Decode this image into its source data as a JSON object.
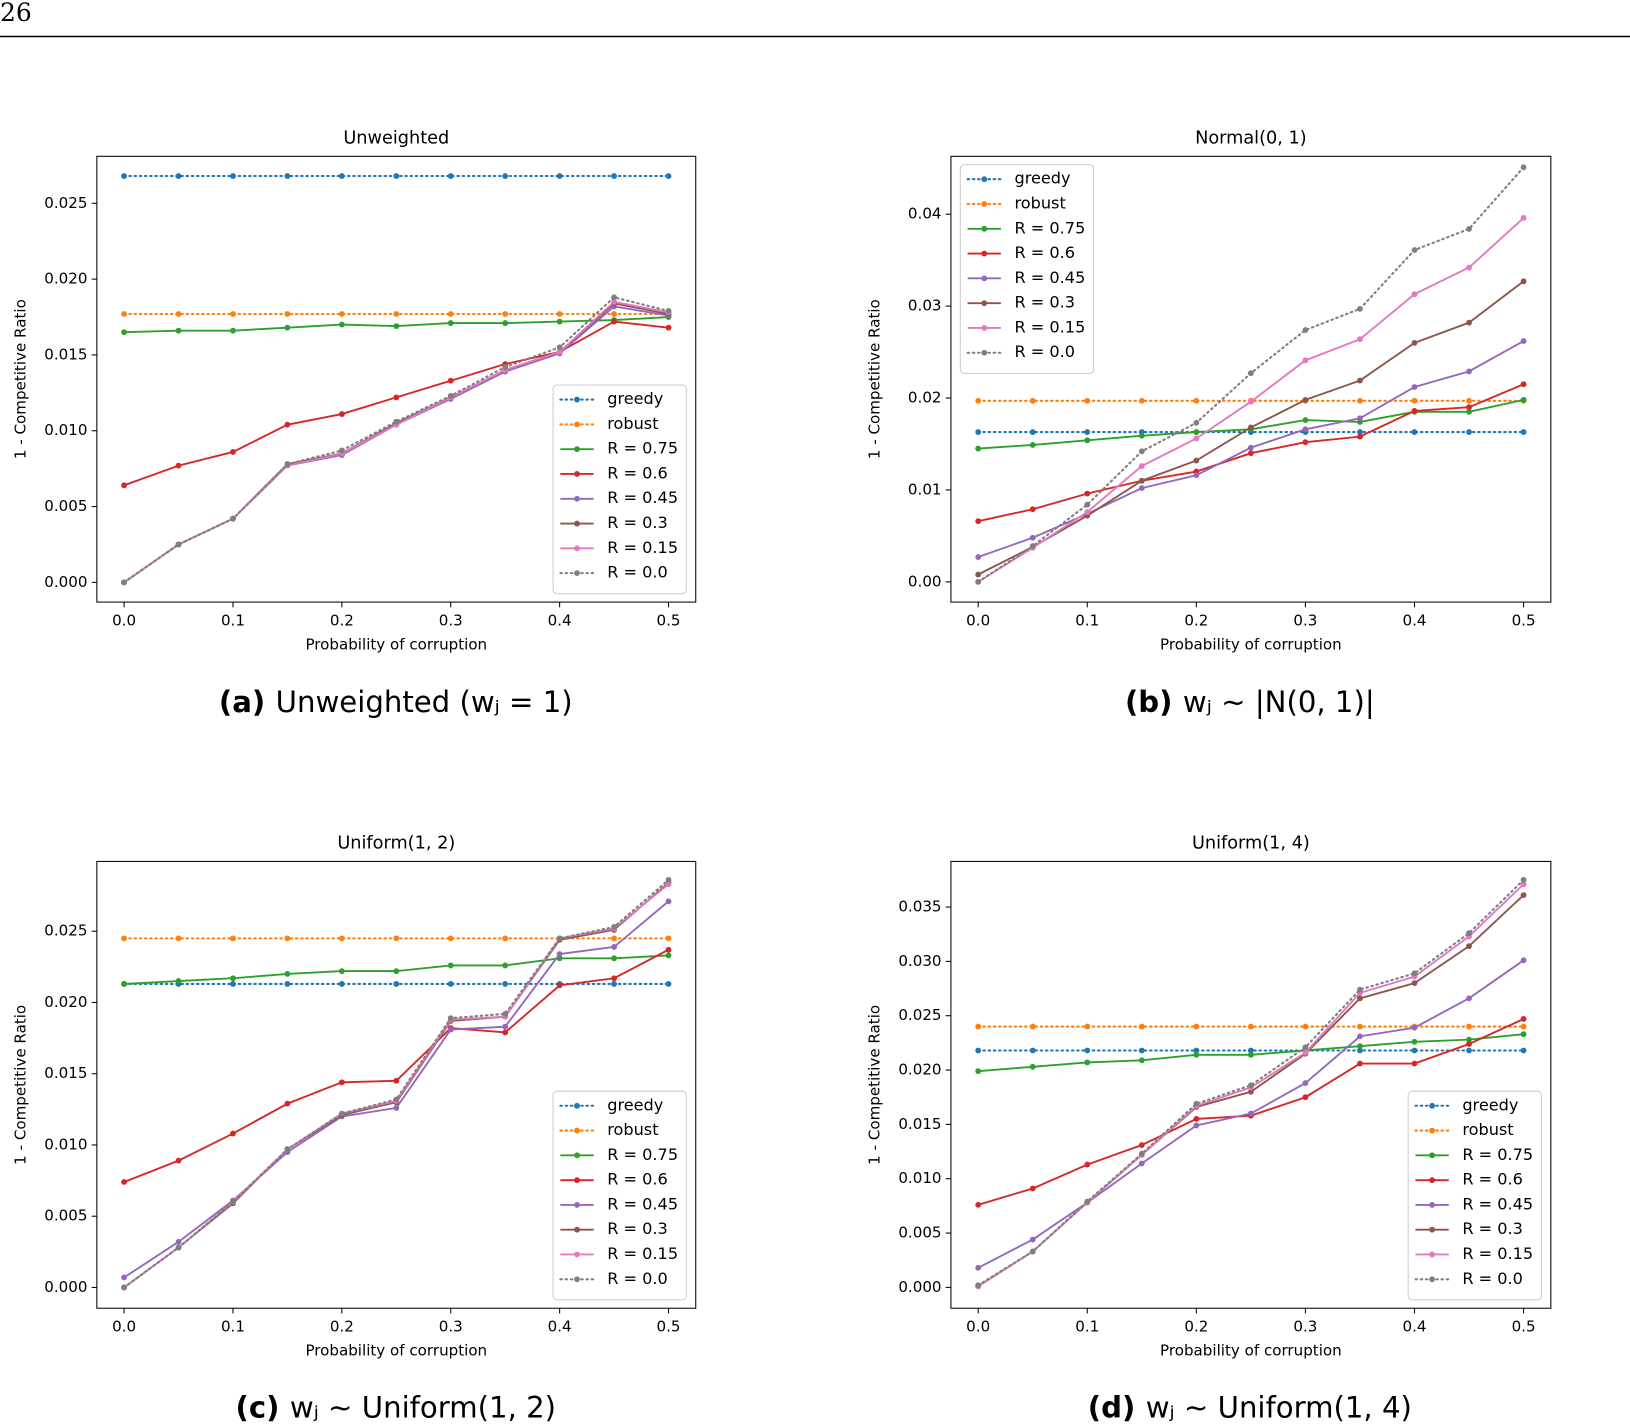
{
  "page_number": "26",
  "chart_data": [
    {
      "type": "line",
      "title": "Unweighted",
      "x_label": "Probability of corruption",
      "y_label": "1 - Competitive Ratio",
      "caption_label": "(a)",
      "caption": "Unweighted (wⱼ = 1)",
      "legend": "lower right",
      "x": [
        0,
        0.05,
        0.1,
        0.15,
        0.2,
        0.25,
        0.3,
        0.35,
        0.4,
        0.45,
        0.5
      ],
      "xlim": [
        -0.025,
        0.525
      ],
      "xticks": [
        {
          "value": 0,
          "label": "0.0"
        },
        0.1,
        0.2,
        0.3,
        0.4,
        0.5
      ],
      "ylim": [
        -0.0013,
        0.0281
      ],
      "yticks": [
        {
          "value": 0,
          "label": "0.000"
        },
        0.005,
        {
          "value": 0.01,
          "label": "0.010"
        },
        0.015,
        {
          "value": 0.02,
          "label": "0.020"
        },
        0.025
      ],
      "series": [
        {
          "name": "greedy",
          "color": "#1f77b4",
          "style": "dotted",
          "values": [
            0.0268,
            0.0268,
            0.0268,
            0.0268,
            0.0268,
            0.0268,
            0.0268,
            0.0268,
            0.0268,
            0.0268,
            0.0268
          ]
        },
        {
          "name": "robust",
          "color": "#ff7f0e",
          "style": "dotted",
          "values": [
            0.0177,
            0.0177,
            0.0177,
            0.0177,
            0.0177,
            0.0177,
            0.0177,
            0.0177,
            0.0177,
            0.0177,
            0.0177
          ]
        },
        {
          "name": "R = 0.75",
          "color": "#2ca02c",
          "style": "solid",
          "values": [
            0.0165,
            0.0166,
            0.0166,
            0.0168,
            0.017,
            0.0169,
            0.0171,
            0.0171,
            0.0172,
            0.0173,
            0.0175
          ]
        },
        {
          "name": "R = 0.6",
          "color": "#d62728",
          "style": "solid",
          "values": [
            0.0064,
            0.0077,
            0.0086,
            0.0104,
            0.0111,
            0.0122,
            0.0133,
            0.0144,
            0.0152,
            0.0172,
            0.0168
          ]
        },
        {
          "name": "R = 0.45",
          "color": "#9467bd",
          "style": "solid",
          "values": [
            0,
            0.0025,
            0.0042,
            0.0077,
            0.0084,
            0.0104,
            0.0121,
            0.0139,
            0.0151,
            0.0182,
            0.0176
          ]
        },
        {
          "name": "R = 0.3",
          "color": "#8c564b",
          "style": "solid",
          "values": [
            0,
            0.0025,
            0.0042,
            0.0078,
            0.0085,
            0.0105,
            0.0122,
            0.014,
            0.0152,
            0.0184,
            0.0177
          ]
        },
        {
          "name": "R = 0.15",
          "color": "#e377c2",
          "style": "solid",
          "values": [
            0,
            0.0025,
            0.0042,
            0.0077,
            0.0085,
            0.0104,
            0.0122,
            0.014,
            0.0152,
            0.0185,
            0.0178
          ]
        },
        {
          "name": "R = 0.0",
          "color": "#7f7f7f",
          "style": "dotted",
          "values": [
            0,
            0.0025,
            0.0042,
            0.0078,
            0.0087,
            0.0106,
            0.0123,
            0.0142,
            0.0155,
            0.0188,
            0.0179
          ]
        }
      ]
    },
    {
      "type": "line",
      "title": "Normal(0, 1)",
      "x_label": "Probability of corruption",
      "y_label": "1 - Competitive Ratio",
      "caption_label": "(b)",
      "caption": "wⱼ ∼ |N(0, 1)|",
      "legend": "upper left",
      "x": [
        0,
        0.05,
        0.1,
        0.15,
        0.2,
        0.25,
        0.3,
        0.35,
        0.4,
        0.45,
        0.5
      ],
      "xlim": [
        -0.025,
        0.525
      ],
      "xticks": [
        {
          "value": 0,
          "label": "0.0"
        },
        0.1,
        0.2,
        0.3,
        0.4,
        0.5
      ],
      "ylim": [
        -0.0022,
        0.0463
      ],
      "yticks": [
        {
          "value": 0,
          "label": "0.00"
        },
        0.01,
        0.02,
        0.03,
        0.04
      ],
      "series": [
        {
          "name": "greedy",
          "color": "#1f77b4",
          "style": "dotted",
          "values": [
            0.0163,
            0.0163,
            0.0163,
            0.0163,
            0.0163,
            0.0163,
            0.0163,
            0.0163,
            0.0163,
            0.0163,
            0.0163
          ]
        },
        {
          "name": "robust",
          "color": "#ff7f0e",
          "style": "dotted",
          "values": [
            0.0197,
            0.0197,
            0.0197,
            0.0197,
            0.0197,
            0.0197,
            0.0197,
            0.0197,
            0.0197,
            0.0197,
            0.0197
          ]
        },
        {
          "name": "R = 0.75",
          "color": "#2ca02c",
          "style": "solid",
          "values": [
            0.0145,
            0.0149,
            0.0154,
            0.0159,
            0.0163,
            0.0166,
            0.0176,
            0.0174,
            0.0185,
            0.0185,
            0.0198
          ]
        },
        {
          "name": "R = 0.6",
          "color": "#d62728",
          "style": "solid",
          "values": [
            0.0066,
            0.0079,
            0.0096,
            0.011,
            0.012,
            0.014,
            0.0152,
            0.0158,
            0.0186,
            0.019,
            0.0215
          ]
        },
        {
          "name": "R = 0.45",
          "color": "#9467bd",
          "style": "solid",
          "values": [
            0.0027,
            0.0048,
            0.0074,
            0.0102,
            0.0116,
            0.0146,
            0.0166,
            0.0178,
            0.0212,
            0.0229,
            0.0262
          ]
        },
        {
          "name": "R = 0.3",
          "color": "#8c564b",
          "style": "solid",
          "values": [
            0.0008,
            0.0038,
            0.0072,
            0.011,
            0.0132,
            0.0168,
            0.0198,
            0.0219,
            0.026,
            0.0282,
            0.0327
          ]
        },
        {
          "name": "R = 0.15",
          "color": "#e377c2",
          "style": "solid",
          "values": [
            0,
            0.0037,
            0.0076,
            0.0126,
            0.0156,
            0.0196,
            0.0241,
            0.0264,
            0.0313,
            0.0342,
            0.0396
          ]
        },
        {
          "name": "R = 0.0",
          "color": "#7f7f7f",
          "style": "dotted",
          "values": [
            0,
            0.0039,
            0.0084,
            0.0142,
            0.0173,
            0.0227,
            0.0274,
            0.0297,
            0.0361,
            0.0384,
            0.0451
          ]
        }
      ]
    },
    {
      "type": "line",
      "title": "Uniform(1, 2)",
      "x_label": "Probability of corruption",
      "y_label": "1 - Competitive Ratio",
      "caption_label": "(c)",
      "caption": "wⱼ ∼ Uniform(1, 2)",
      "legend": "lower right",
      "x": [
        0,
        0.05,
        0.1,
        0.15,
        0.2,
        0.25,
        0.3,
        0.35,
        0.4,
        0.45,
        0.5
      ],
      "xlim": [
        -0.025,
        0.525
      ],
      "xticks": [
        {
          "value": 0,
          "label": "0.0"
        },
        0.1,
        0.2,
        0.3,
        0.4,
        0.5
      ],
      "ylim": [
        -0.00146,
        0.0299
      ],
      "yticks": [
        {
          "value": 0,
          "label": "0.000"
        },
        0.005,
        {
          "value": 0.01,
          "label": "0.010"
        },
        0.015,
        {
          "value": 0.02,
          "label": "0.020"
        },
        0.025
      ],
      "series": [
        {
          "name": "greedy",
          "color": "#1f77b4",
          "style": "dotted",
          "values": [
            0.0213,
            0.0213,
            0.0213,
            0.0213,
            0.0213,
            0.0213,
            0.0213,
            0.0213,
            0.0213,
            0.0213,
            0.0213
          ]
        },
        {
          "name": "robust",
          "color": "#ff7f0e",
          "style": "dotted",
          "values": [
            0.0245,
            0.0245,
            0.0245,
            0.0245,
            0.0245,
            0.0245,
            0.0245,
            0.0245,
            0.0245,
            0.0245,
            0.0245
          ]
        },
        {
          "name": "R = 0.75",
          "color": "#2ca02c",
          "style": "solid",
          "values": [
            0.0213,
            0.0215,
            0.0217,
            0.022,
            0.0222,
            0.0222,
            0.0226,
            0.0226,
            0.0231,
            0.0231,
            0.0233
          ]
        },
        {
          "name": "R = 0.6",
          "color": "#d62728",
          "style": "solid",
          "values": [
            0.0074,
            0.0089,
            0.0108,
            0.0129,
            0.0144,
            0.0145,
            0.0182,
            0.0179,
            0.0212,
            0.0217,
            0.0237
          ]
        },
        {
          "name": "R = 0.45",
          "color": "#9467bd",
          "style": "solid",
          "values": [
            0.0007,
            0.0032,
            0.0061,
            0.0095,
            0.012,
            0.0126,
            0.0181,
            0.0183,
            0.0234,
            0.0239,
            0.0271
          ]
        },
        {
          "name": "R = 0.3",
          "color": "#8c564b",
          "style": "solid",
          "values": [
            0,
            0.0028,
            0.0059,
            0.0097,
            0.0121,
            0.013,
            0.0187,
            0.019,
            0.0244,
            0.0251,
            0.0284
          ]
        },
        {
          "name": "R = 0.15",
          "color": "#e377c2",
          "style": "solid",
          "values": [
            0,
            0.0028,
            0.006,
            0.0097,
            0.0122,
            0.0131,
            0.0188,
            0.019,
            0.0245,
            0.0252,
            0.0283
          ]
        },
        {
          "name": "R = 0.0",
          "color": "#7f7f7f",
          "style": "dotted",
          "values": [
            0,
            0.0028,
            0.006,
            0.0097,
            0.0122,
            0.0132,
            0.0189,
            0.0192,
            0.0245,
            0.0253,
            0.0286
          ]
        }
      ]
    },
    {
      "type": "line",
      "title": "Uniform(1, 4)",
      "x_label": "Probability of corruption",
      "y_label": "1 - Competitive Ratio",
      "caption_label": "(d)",
      "caption": "wⱼ ∼ Uniform(1, 4)",
      "legend": "lower right",
      "x": [
        0,
        0.05,
        0.1,
        0.15,
        0.2,
        0.25,
        0.3,
        0.35,
        0.4,
        0.45,
        0.5
      ],
      "xlim": [
        -0.025,
        0.525
      ],
      "xticks": [
        {
          "value": 0,
          "label": "0.0"
        },
        0.1,
        0.2,
        0.3,
        0.4,
        0.5
      ],
      "ylim": [
        -0.00192,
        0.0392
      ],
      "yticks": [
        {
          "value": 0,
          "label": "0.000"
        },
        0.005,
        {
          "value": 0.01,
          "label": "0.010"
        },
        0.015,
        {
          "value": 0.02,
          "label": "0.020"
        },
        0.025,
        {
          "value": 0.03,
          "label": "0.030"
        },
        0.035
      ],
      "series": [
        {
          "name": "greedy",
          "color": "#1f77b4",
          "style": "dotted",
          "values": [
            0.0218,
            0.0218,
            0.0218,
            0.0218,
            0.0218,
            0.0218,
            0.0218,
            0.0218,
            0.0218,
            0.0218,
            0.0218
          ]
        },
        {
          "name": "robust",
          "color": "#ff7f0e",
          "style": "dotted",
          "values": [
            0.024,
            0.024,
            0.024,
            0.024,
            0.024,
            0.024,
            0.024,
            0.024,
            0.024,
            0.024,
            0.024
          ]
        },
        {
          "name": "R = 0.75",
          "color": "#2ca02c",
          "style": "solid",
          "values": [
            0.0199,
            0.0203,
            0.0207,
            0.0209,
            0.0214,
            0.0214,
            0.0218,
            0.0222,
            0.0226,
            0.0228,
            0.0233
          ]
        },
        {
          "name": "R = 0.6",
          "color": "#d62728",
          "style": "solid",
          "values": [
            0.0076,
            0.0091,
            0.0113,
            0.0131,
            0.0155,
            0.0158,
            0.0175,
            0.0206,
            0.0206,
            0.0224,
            0.0247
          ]
        },
        {
          "name": "R = 0.45",
          "color": "#9467bd",
          "style": "solid",
          "values": [
            0.0018,
            0.0044,
            0.0078,
            0.0114,
            0.0149,
            0.016,
            0.0188,
            0.0231,
            0.0239,
            0.0266,
            0.0301
          ]
        },
        {
          "name": "R = 0.3",
          "color": "#8c564b",
          "style": "solid",
          "values": [
            0.0001,
            0.0033,
            0.0078,
            0.0122,
            0.0166,
            0.018,
            0.0215,
            0.0266,
            0.028,
            0.0314,
            0.0361
          ]
        },
        {
          "name": "R = 0.15",
          "color": "#e377c2",
          "style": "solid",
          "values": [
            0.0001,
            0.0033,
            0.0078,
            0.0122,
            0.0167,
            0.0184,
            0.0216,
            0.0271,
            0.0286,
            0.0323,
            0.0371
          ]
        },
        {
          "name": "R = 0.0",
          "color": "#7f7f7f",
          "style": "dotted",
          "values": [
            0.0002,
            0.0033,
            0.0079,
            0.0123,
            0.0169,
            0.0186,
            0.0221,
            0.0274,
            0.0289,
            0.0326,
            0.0375
          ]
        }
      ]
    }
  ]
}
